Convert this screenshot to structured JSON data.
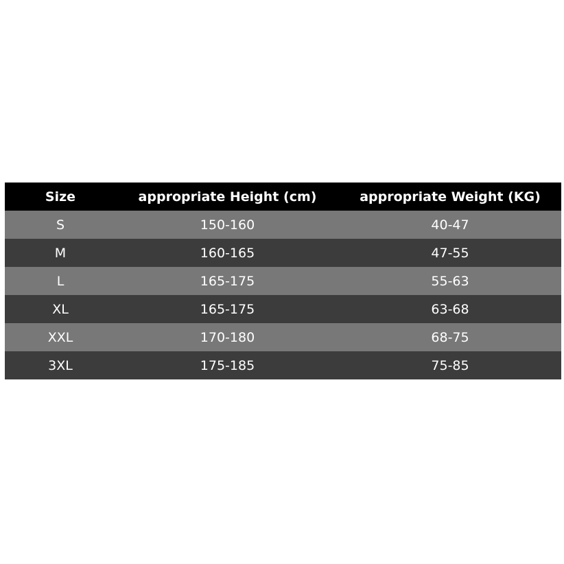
{
  "table": {
    "header": [
      "Size",
      "appropriate Height (cm)",
      "appropriate Weight (KG)"
    ],
    "rows": [
      [
        "S",
        "150-160",
        "40-47"
      ],
      [
        "M",
        "160-165",
        "47-55"
      ],
      [
        "L",
        "165-175",
        "55-63"
      ],
      [
        "XL",
        "165-175",
        "63-68"
      ],
      [
        "XXL",
        "170-180",
        "68-75"
      ],
      [
        "3XL",
        "175-185",
        "75-85"
      ]
    ]
  }
}
